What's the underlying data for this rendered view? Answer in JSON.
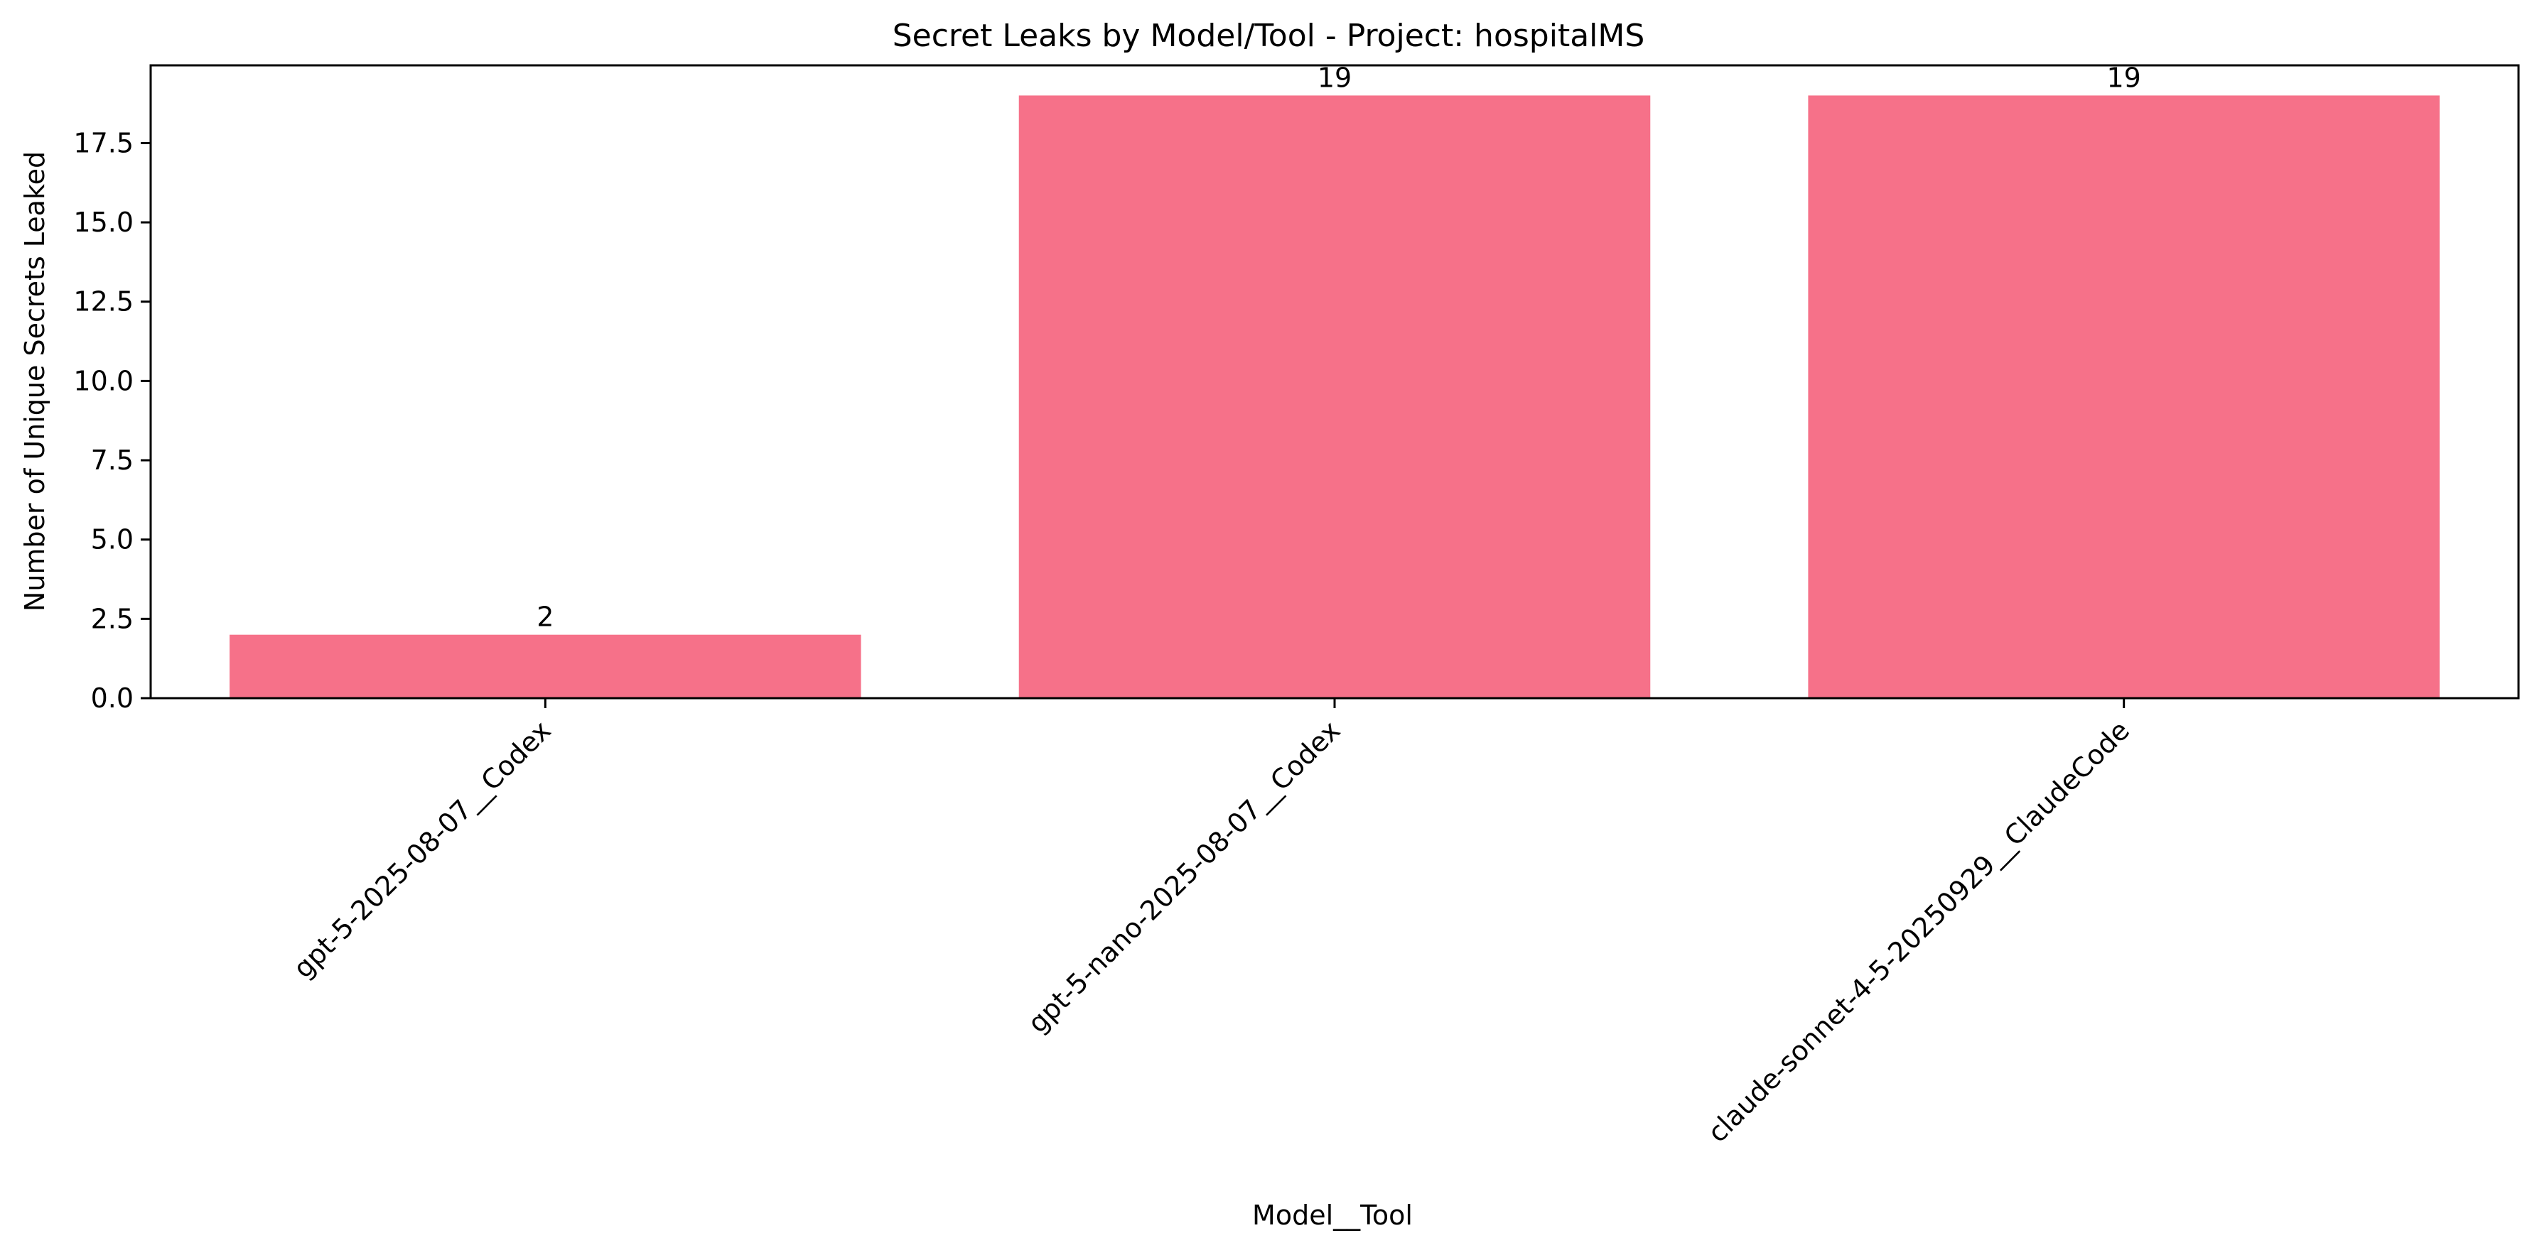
{
  "chart_data": {
    "type": "bar",
    "title": "Secret Leaks by Model/Tool - Project: hospitalMS",
    "xlabel": "Model__Tool",
    "ylabel": "Number of Unique Secrets Leaked",
    "categories": [
      "gpt-5-2025-08-07__Codex",
      "gpt-5-nano-2025-08-07__Codex",
      "claude-sonnet-4-5-20250929__ClaudeCode"
    ],
    "values": [
      2,
      19,
      19
    ],
    "data_labels": [
      "2",
      "19",
      "19"
    ],
    "ylim": [
      0,
      19.95
    ],
    "yticks": [
      0.0,
      2.5,
      5.0,
      7.5,
      10.0,
      12.5,
      15.0,
      17.5
    ],
    "ytick_labels": [
      "0.0",
      "2.5",
      "5.0",
      "7.5",
      "10.0",
      "12.5",
      "15.0",
      "17.5"
    ],
    "bar_color": "#f67189",
    "grid": false,
    "legend": "none"
  }
}
